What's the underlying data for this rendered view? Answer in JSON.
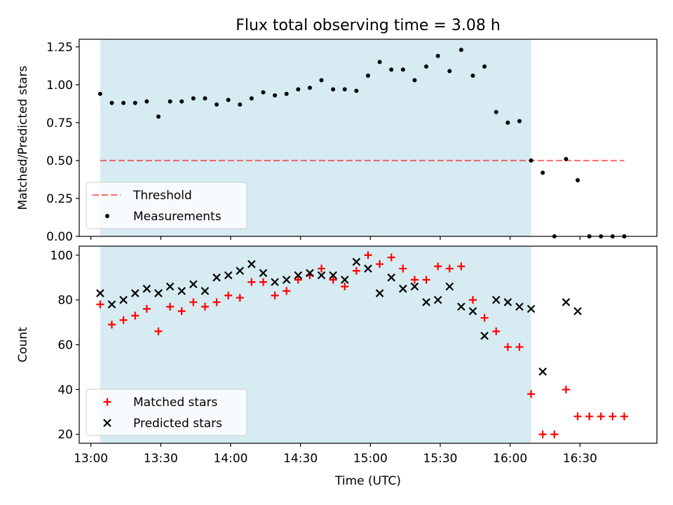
{
  "title": "Flux total observing time = 3.08 h",
  "colors": {
    "shade": "#add8e6",
    "threshold": "#ff0000",
    "matched": "#ff0000",
    "predicted": "#000000",
    "measurement": "#000000"
  },
  "chart_data": [
    {
      "type": "scatter",
      "ylabel": "Matched/Predicted stars",
      "ylim": [
        0,
        1.3
      ],
      "yticks": [
        "0.00",
        "0.25",
        "0.50",
        "0.75",
        "1.00",
        "1.25"
      ],
      "xlim": [
        775,
        1023
      ],
      "shaded_span": [
        "13:04",
        "16:09"
      ],
      "threshold": {
        "label": "Threshold",
        "value": 0.5,
        "x_range": [
          "13:04",
          "16:49"
        ]
      },
      "legend": {
        "placement": "lower-left",
        "entries": [
          "Threshold",
          "Measurements"
        ]
      },
      "series": [
        {
          "name": "Measurements",
          "x": [
            "13:04",
            "13:09",
            "13:14",
            "13:19",
            "13:24",
            "13:29",
            "13:34",
            "13:39",
            "13:44",
            "13:49",
            "13:54",
            "13:59",
            "14:04",
            "14:09",
            "14:14",
            "14:19",
            "14:24",
            "14:29",
            "14:34",
            "14:39",
            "14:44",
            "14:49",
            "14:54",
            "14:59",
            "15:04",
            "15:09",
            "15:14",
            "15:19",
            "15:24",
            "15:29",
            "15:34",
            "15:39",
            "15:44",
            "15:49",
            "15:54",
            "15:59",
            "16:04",
            "16:09",
            "16:14",
            "16:19",
            "16:24",
            "16:29",
            "16:34",
            "16:39",
            "16:44",
            "16:49"
          ],
          "y": [
            0.94,
            0.88,
            0.88,
            0.88,
            0.89,
            0.79,
            0.89,
            0.89,
            0.91,
            0.91,
            0.87,
            0.9,
            0.87,
            0.91,
            0.95,
            0.93,
            0.94,
            0.97,
            0.98,
            1.03,
            0.97,
            0.97,
            0.96,
            1.06,
            1.15,
            1.1,
            1.1,
            1.03,
            1.12,
            1.19,
            1.09,
            1.23,
            1.06,
            1.12,
            0.82,
            0.75,
            0.76,
            0.5,
            0.42,
            0.0,
            0.51,
            0.37,
            0.0,
            0.0,
            0.0,
            0.0
          ]
        }
      ]
    },
    {
      "type": "scatter",
      "ylabel": "Count",
      "xlabel": "Time (UTC)",
      "ylim": [
        16,
        104
      ],
      "yticks": [
        "20",
        "40",
        "60",
        "80",
        "100"
      ],
      "xlim": [
        775,
        1023
      ],
      "xticks": [
        "13:00",
        "13:30",
        "14:00",
        "14:30",
        "15:00",
        "15:30",
        "16:00",
        "16:30"
      ],
      "shaded_span": [
        "13:04",
        "16:09"
      ],
      "legend": {
        "placement": "lower-left",
        "entries": [
          "Matched stars",
          "Predicted stars"
        ]
      },
      "series": [
        {
          "name": "Matched stars",
          "marker": "plus",
          "x": [
            "13:04",
            "13:09",
            "13:14",
            "13:19",
            "13:24",
            "13:29",
            "13:34",
            "13:39",
            "13:44",
            "13:49",
            "13:54",
            "13:59",
            "14:04",
            "14:09",
            "14:14",
            "14:19",
            "14:24",
            "14:29",
            "14:34",
            "14:39",
            "14:44",
            "14:49",
            "14:54",
            "14:59",
            "15:04",
            "15:09",
            "15:14",
            "15:19",
            "15:24",
            "15:29",
            "15:34",
            "15:39",
            "15:44",
            "15:49",
            "15:54",
            "15:59",
            "16:04",
            "16:09",
            "16:14",
            "16:19",
            "16:24",
            "16:29",
            "16:34",
            "16:39",
            "16:44",
            "16:49"
          ],
          "y": [
            78,
            69,
            71,
            73,
            76,
            66,
            77,
            75,
            79,
            77,
            79,
            82,
            81,
            88,
            88,
            82,
            84,
            89,
            91,
            94,
            89,
            86,
            93,
            100,
            96,
            99,
            94,
            89,
            89,
            95,
            94,
            95,
            80,
            72,
            66,
            59,
            59,
            38,
            20,
            20,
            40,
            28,
            28,
            28,
            28,
            28
          ]
        },
        {
          "name": "Predicted stars",
          "marker": "x",
          "x": [
            "13:04",
            "13:09",
            "13:14",
            "13:19",
            "13:24",
            "13:29",
            "13:34",
            "13:39",
            "13:44",
            "13:49",
            "13:54",
            "13:59",
            "14:04",
            "14:09",
            "14:14",
            "14:19",
            "14:24",
            "14:29",
            "14:34",
            "14:39",
            "14:44",
            "14:49",
            "14:54",
            "14:59",
            "15:04",
            "15:09",
            "15:14",
            "15:19",
            "15:24",
            "15:29",
            "15:34",
            "15:39",
            "15:44",
            "15:49",
            "15:54",
            "15:59",
            "16:04",
            "16:09",
            "16:14",
            "16:24",
            "16:29"
          ],
          "y": [
            83,
            78,
            80,
            83,
            85,
            83,
            86,
            84,
            87,
            84,
            90,
            91,
            93,
            96,
            92,
            88,
            89,
            91,
            92,
            91,
            91,
            89,
            97,
            94,
            83,
            90,
            85,
            86,
            79,
            80,
            86,
            77,
            75,
            64,
            80,
            79,
            77,
            76,
            48,
            79,
            75
          ]
        }
      ]
    }
  ]
}
